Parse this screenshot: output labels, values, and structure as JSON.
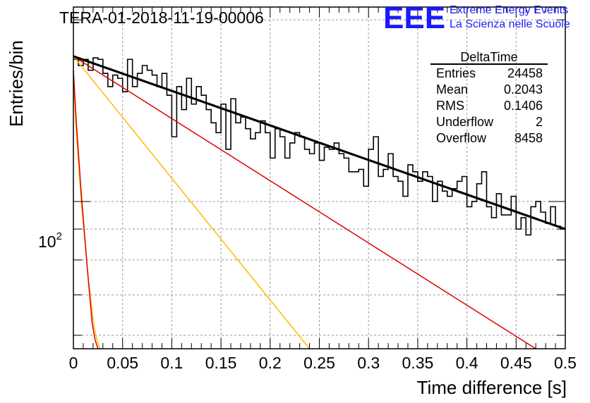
{
  "title": "TERA-01-2018-11-19-00006",
  "logo": {
    "text": "EEE",
    "line1": "Extreme Energy Events",
    "line2": "La Scienza nelle Scuole",
    "color": "#1a1aff"
  },
  "stats": {
    "name": "DeltaTime",
    "rows": [
      {
        "label": "Entries",
        "value": "24458"
      },
      {
        "label": "Mean",
        "value": "0.2043"
      },
      {
        "label": "RMS",
        "value": "0.1406"
      },
      {
        "label": "Underflow",
        "value": "2"
      },
      {
        "label": "Overflow",
        "value": "8458"
      }
    ]
  },
  "chart_data": {
    "type": "line",
    "title": "TERA-01-2018-11-19-00006",
    "xlabel": "Time difference [s]",
    "ylabel": "Entries/bin",
    "xlim": [
      0,
      0.5
    ],
    "ylim": [
      57,
      210
    ],
    "log_y": true,
    "grid": true,
    "x_ticks": [
      "0",
      "0.05",
      "0.1",
      "0.15",
      "0.2",
      "0.25",
      "0.3",
      "0.35",
      "0.4",
      "0.45",
      "0.5"
    ],
    "y_tick_label": {
      "base": "10",
      "exp": "2",
      "value": 100
    },
    "histogram": {
      "bin_width": 0.005,
      "color": "#000000",
      "values": [
        172,
        168,
        172,
        165,
        173,
        172,
        163,
        155,
        162,
        160,
        152,
        172,
        155,
        163,
        168,
        165,
        162,
        155,
        163,
        150,
        128,
        155,
        142,
        160,
        145,
        155,
        150,
        142,
        135,
        130,
        145,
        122,
        148,
        135,
        138,
        132,
        127,
        130,
        136,
        130,
        118,
        132,
        128,
        118,
        125,
        130,
        128,
        122,
        120,
        125,
        117,
        123,
        122,
        125,
        120,
        118,
        112,
        112,
        113,
        106,
        122,
        128,
        110,
        113,
        120,
        110,
        108,
        102,
        115,
        112,
        108,
        112,
        110,
        100,
        108,
        104,
        102,
        105,
        108,
        110,
        98,
        100,
        107,
        112,
        98,
        94,
        103,
        95,
        95,
        102,
        90,
        94,
        88,
        98,
        100,
        96,
        92,
        98,
        91,
        90
      ]
    },
    "series": [
      {
        "color": "#000000",
        "width": 3,
        "x": [
          0,
          0.5
        ],
        "y": [
          174,
          90
        ]
      },
      {
        "color": "#dd0000",
        "width": 1.5,
        "x": [
          0,
          0.47
        ],
        "y": [
          174,
          57
        ]
      },
      {
        "color": "#ffbb00",
        "width": 1.5,
        "x": [
          0,
          0.24
        ],
        "y": [
          174,
          57
        ]
      },
      {
        "color": "#ffbb00",
        "width": 1.5,
        "x": [
          0,
          0.003,
          0.008,
          0.015,
          0.021,
          0.024,
          0.027
        ],
        "y": [
          158,
          130,
          100,
          75,
          62,
          59,
          57
        ]
      },
      {
        "color": "#dd0000",
        "width": 1.5,
        "x": [
          0,
          0.003,
          0.008,
          0.014,
          0.019,
          0.022,
          0.025
        ],
        "y": [
          165,
          135,
          103,
          78,
          63,
          59,
          57
        ]
      }
    ]
  }
}
